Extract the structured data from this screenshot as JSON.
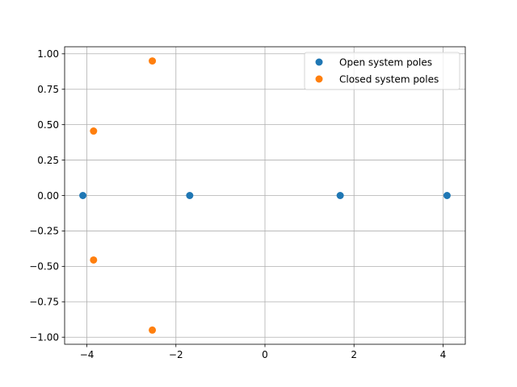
{
  "chart_data": {
    "type": "scatter",
    "title": "",
    "xlabel": "",
    "ylabel": "",
    "xlim": [
      -4.5,
      4.5
    ],
    "ylim": [
      -1.05,
      1.05
    ],
    "grid": true,
    "legend_position": "top-right",
    "x_ticks": [
      -4,
      -2,
      0,
      2,
      4
    ],
    "x_tick_labels": [
      "−4",
      "−2",
      "0",
      "2",
      "4"
    ],
    "y_ticks": [
      1.0,
      0.75,
      0.5,
      0.25,
      0.0,
      -0.25,
      -0.5,
      -0.75,
      -1.0
    ],
    "y_tick_labels": [
      "1.00",
      "0.75",
      "0.50",
      "0.25",
      "0.00",
      "−0.25",
      "−0.50",
      "−0.75",
      "−1.00"
    ],
    "series": [
      {
        "name": "Open system poles",
        "color": "#1f77b4",
        "points": [
          {
            "x": -4.09,
            "y": 0.0
          },
          {
            "x": -1.69,
            "y": 0.0
          },
          {
            "x": 1.69,
            "y": 0.0
          },
          {
            "x": 4.09,
            "y": 0.0
          }
        ]
      },
      {
        "name": "Closed system poles",
        "color": "#ff7f0e",
        "points": [
          {
            "x": -2.53,
            "y": 0.95
          },
          {
            "x": -3.85,
            "y": 0.455
          },
          {
            "x": -3.85,
            "y": -0.455
          },
          {
            "x": -2.53,
            "y": -0.95
          }
        ]
      }
    ]
  }
}
